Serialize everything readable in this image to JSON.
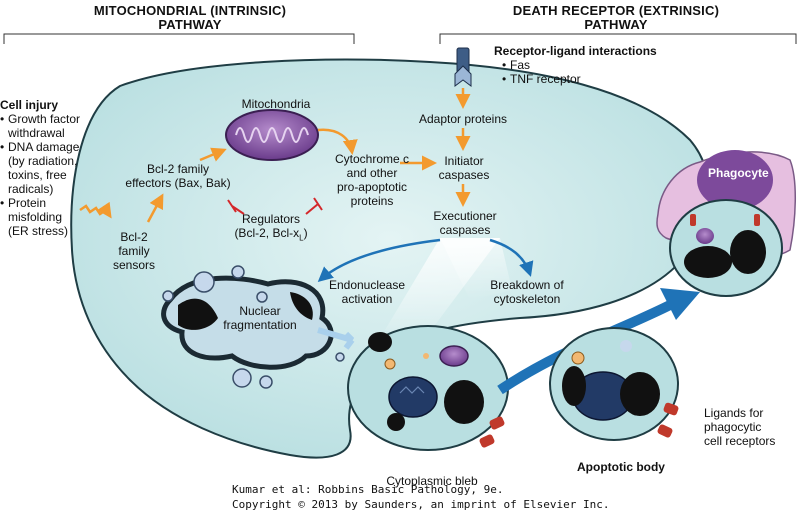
{
  "headers": {
    "intrinsic": [
      "MITOCHONDRIAL (INTRINSIC)",
      "PATHWAY"
    ],
    "extrinsic": [
      "DEATH RECEPTOR (EXTRINSIC)",
      "PATHWAY"
    ]
  },
  "cell_injury": {
    "title": "Cell injury",
    "items": [
      "Growth factor withdrawal",
      "DNA damage (by radiation, toxins, free radicals)",
      "Protein misfolding (ER stress)"
    ],
    "item_lines": [
      [
        "Growth factor",
        "withdrawal"
      ],
      [
        "DNA damage",
        "(by radiation,",
        "toxins, free",
        "radicals)"
      ],
      [
        "Protein",
        "misfolding",
        "(ER stress)"
      ]
    ]
  },
  "receptor": {
    "title": "Receptor-ligand interactions",
    "items": [
      "Fas",
      "TNF receptor"
    ]
  },
  "labels": {
    "sensors": [
      "Bcl-2",
      "family",
      "sensors"
    ],
    "effectors": [
      "Bcl-2 family",
      "effectors (Bax, Bak)"
    ],
    "mitochondria": "Mitochondria",
    "cytochrome": [
      "Cytochrome c",
      "and other",
      "pro-apoptotic",
      "proteins"
    ],
    "regulators": [
      "Regulators",
      "(Bcl-2, Bcl-x"
    ],
    "regulators_sub": "L",
    "regulators_close": ")",
    "adaptor": "Adaptor proteins",
    "initiator": [
      "Initiator",
      "caspases"
    ],
    "executioner": [
      "Executioner",
      "caspases"
    ],
    "endonuclease": [
      "Endonuclease",
      "activation"
    ],
    "cytoskeleton": [
      "Breakdown of",
      "cytoskeleton"
    ],
    "nuclear": [
      "Nuclear",
      "fragmentation"
    ],
    "bleb": "Cytoplasmic bleb",
    "apoptotic_body": "Apoptotic body",
    "ligands": [
      "Ligands for",
      "phagocytic",
      "cell receptors"
    ],
    "phagocyte": "Phagocyte"
  },
  "credit": [
    "Kumar et al: Robbins Basic Pathology, 9e.",
    "Copyright © 2013  by Saunders, an imprint of Elsevier Inc."
  ],
  "colors": {
    "cell_fill": "#cfe9ea",
    "cell_stroke": "#1f3d44",
    "arrow_orange": "#f39a2e",
    "arrow_blue": "#1f73b7",
    "inhibit_red": "#d4282b",
    "mito_purple": "#7b4a9a",
    "phagocyte_pink": "#e6bfe0",
    "phagocyte_nucleus": "#7d4a9b",
    "nucleus_black": "#111111",
    "receptor_red": "#c0392b"
  }
}
